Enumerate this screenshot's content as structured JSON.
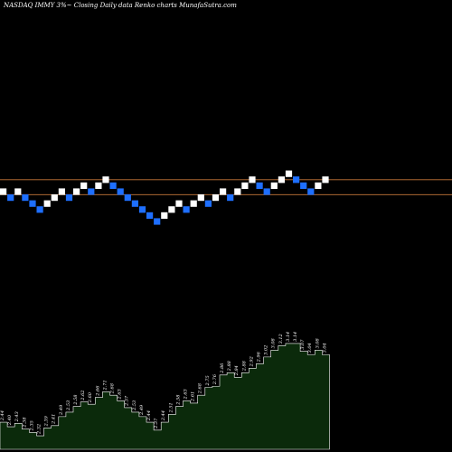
{
  "title": "NASDAQ IMMY 3%~  Closing Daily data  Renko  charts MunafaSutra.com",
  "colors": {
    "background": "#000000",
    "brick_up": "#ffffff",
    "brick_down": "#1e6fff",
    "level_line": "#c8783a",
    "volume_fill": "#0b2a0b",
    "volume_stroke": "#ffffff"
  },
  "chart_data": {
    "type": "renko",
    "title": "NASDAQ IMMY 3%~  Closing Daily data  Renko  charts MunafaSutra.com",
    "brick_size_label": "3%",
    "brick_directions": [
      "up",
      "down",
      "up",
      "down",
      "down",
      "down",
      "up",
      "up",
      "up",
      "down",
      "up",
      "up",
      "down",
      "up",
      "up",
      "down",
      "down",
      "down",
      "down",
      "down",
      "down",
      "down",
      "up",
      "up",
      "up",
      "down",
      "up",
      "up",
      "down",
      "up",
      "up",
      "down",
      "up",
      "up",
      "up",
      "down",
      "down",
      "up",
      "up",
      "up",
      "down",
      "down",
      "down",
      "up",
      "up"
    ],
    "brick_steps": [
      0,
      -1,
      0,
      -1,
      -2,
      -3,
      -2,
      -1,
      0,
      -1,
      0,
      1,
      0,
      1,
      2,
      1,
      0,
      -1,
      -2,
      -3,
      -4,
      -5,
      -4,
      -3,
      -2,
      -3,
      -2,
      -1,
      -2,
      -1,
      0,
      -1,
      0,
      1,
      2,
      1,
      0,
      1,
      2,
      3,
      2,
      1,
      0,
      1,
      2
    ],
    "level_lines_steps": [
      2,
      -0.5
    ],
    "volume_series": {
      "name": "",
      "values": [
        2.44,
        2.4,
        2.43,
        2.38,
        2.35,
        2.32,
        2.39,
        2.41,
        2.49,
        2.53,
        2.58,
        2.62,
        2.6,
        2.66,
        2.71,
        2.68,
        2.63,
        2.57,
        2.53,
        2.49,
        2.44,
        2.37,
        2.44,
        2.51,
        2.58,
        2.63,
        2.61,
        2.68,
        2.75,
        2.76,
        2.86,
        2.88,
        2.84,
        2.88,
        2.92,
        2.96,
        3.02,
        3.08,
        3.12,
        3.14,
        3.14,
        3.07,
        3.04,
        3.08,
        3.04
      ],
      "labels": [
        "2.44",
        "2.40",
        "2.43",
        "2.38",
        "2.35",
        "2.32",
        "2.39",
        "2.41",
        "2.49",
        "2.53",
        "2.58",
        "2.62",
        "2.60",
        "2.66",
        "2.71",
        "2.68",
        "2.63",
        "2.57",
        "2.53",
        "2.49",
        "2.44",
        "2.37",
        "2.44",
        "2.51",
        "2.58",
        "2.63",
        "2.61",
        "2.68",
        "2.75",
        "2.76",
        "2.86",
        "2.88",
        "2.84",
        "2.88",
        "2.92",
        "2.96",
        "3.02",
        "3.08",
        "3.12",
        "3.14",
        "3.14",
        "3.07",
        "3.04",
        "3.08",
        "3.04"
      ]
    }
  }
}
